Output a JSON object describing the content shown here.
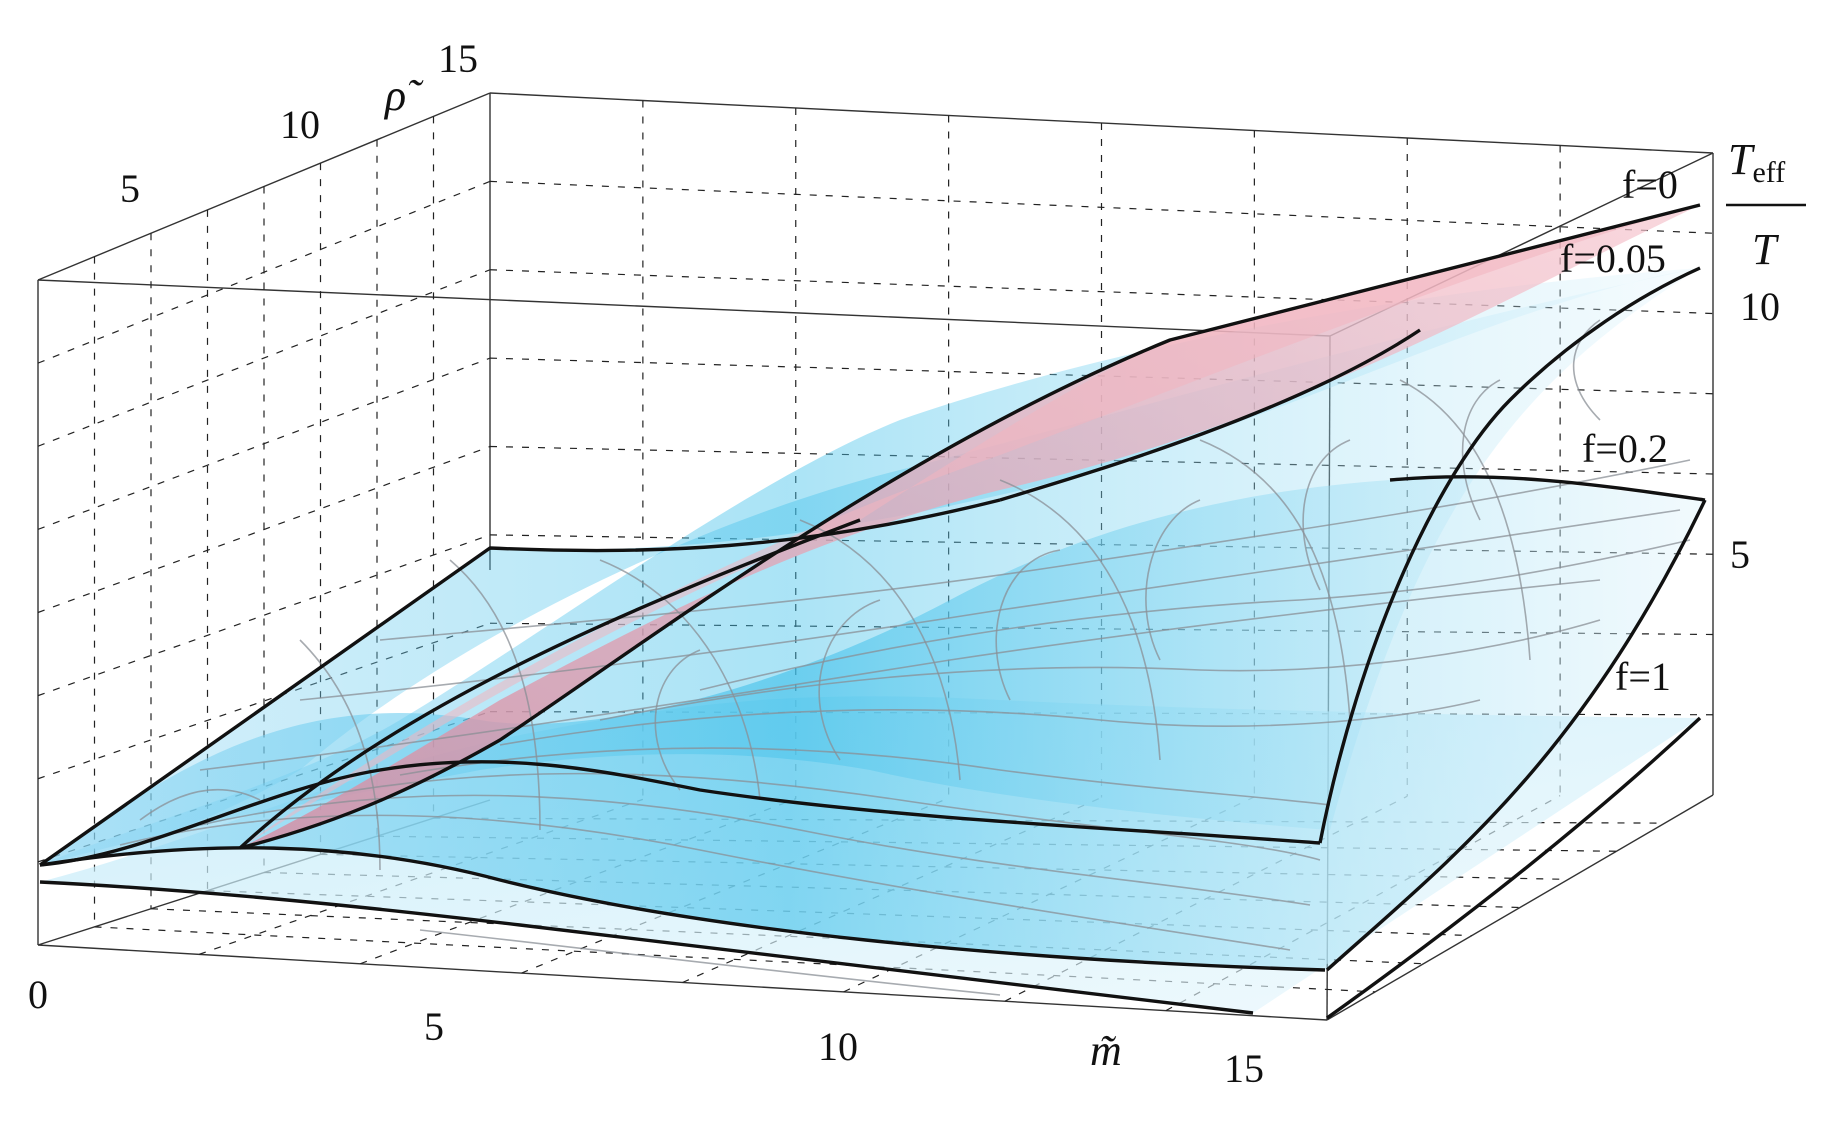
{
  "chart_data": {
    "type": "surface3d",
    "title": "",
    "x_axis": {
      "label": "m̃",
      "range": [
        0,
        16
      ],
      "ticks": [
        "0",
        "5",
        "10",
        "15"
      ]
    },
    "y_axis": {
      "label": "ρ̃",
      "range": [
        0,
        16
      ],
      "ticks": [
        "5",
        "10",
        "15"
      ]
    },
    "z_axis": {
      "label_top": "T",
      "label_top_sub": "eff",
      "label_bottom": "T",
      "range": [
        0,
        12.5
      ],
      "ticks": [
        "5",
        "10"
      ]
    },
    "grid": true,
    "colors": {
      "f0_surface": "#f4b8c2",
      "f_surface": "#aee3f7",
      "f_surface_core": "#58c8ec",
      "outline": "#111111",
      "mesh": "#8a8f96"
    },
    "series": [
      {
        "name": "f=0",
        "label": "f=0",
        "z_at_far_corner": 11.7
      },
      {
        "name": "f=0.05",
        "label": "f=0.05",
        "z_at_far_corner": 11.2
      },
      {
        "name": "f=0.2",
        "label": "f=0.2",
        "z_at_far_corner": 6.8
      },
      {
        "name": "f=1",
        "label": "f=1",
        "z_at_far_corner": 3.5
      }
    ]
  }
}
